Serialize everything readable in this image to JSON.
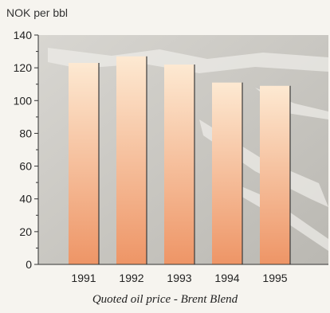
{
  "chart_data": {
    "type": "bar",
    "title": "",
    "ylabel": "NOK per bbl",
    "xlabel": "",
    "caption": "Quoted oil price - Brent Blend",
    "categories": [
      "1991",
      "1992",
      "1993",
      "1994",
      "1995"
    ],
    "values": [
      123,
      127,
      122,
      111,
      109
    ],
    "ylim": [
      0,
      140
    ],
    "yticks": [
      "0",
      "20",
      "40",
      "60",
      "80",
      "100",
      "120",
      "140"
    ],
    "grid": false,
    "legend": "none"
  },
  "colors": {
    "bar_top": "#fde9d2",
    "bar_bottom": "#ee9566",
    "plot_background": "#c4c2bc",
    "axis": "#333333"
  }
}
